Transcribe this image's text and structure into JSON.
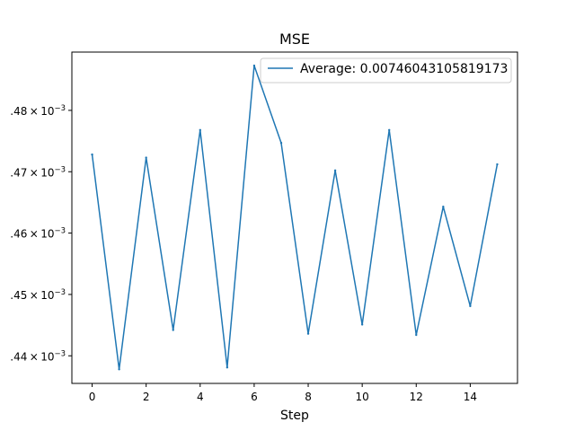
{
  "chart_data": {
    "type": "line",
    "title": "MSE",
    "xlabel": "Step",
    "ylabel": "",
    "xlim": [
      -0.75,
      15.75
    ],
    "ylim": [
      0.0074355,
      0.0074895
    ],
    "x_ticks": [
      0,
      2,
      4,
      6,
      8,
      10,
      12,
      14
    ],
    "x_tick_labels": [
      "0",
      "2",
      "4",
      "6",
      "8",
      "10",
      "12",
      "14"
    ],
    "y_ticks": [
      0.00744,
      0.00745,
      0.00746,
      0.00747,
      0.00748
    ],
    "y_tick_labels": [
      {
        "mantissa": ".44",
        "base": "10",
        "exponent": "−3"
      },
      {
        "mantissa": ".45",
        "base": "10",
        "exponent": "−3"
      },
      {
        "mantissa": ".46",
        "base": "10",
        "exponent": "−3"
      },
      {
        "mantissa": ".47",
        "base": "10",
        "exponent": "−3"
      },
      {
        "mantissa": ".48",
        "base": "10",
        "exponent": "−3"
      }
    ],
    "grid": false,
    "legend_position": "upper-right",
    "series": [
      {
        "name": "Average: 0.00746043105819173",
        "color": "#1f77b4",
        "x": [
          0,
          1,
          2,
          3,
          4,
          5,
          6,
          7,
          8,
          9,
          10,
          11,
          12,
          13,
          14,
          15
        ],
        "y": [
          0.0074728,
          0.0074378,
          0.0074723,
          0.0074442,
          0.0074768,
          0.0074381,
          0.0074873,
          0.0074747,
          0.0074436,
          0.0074702,
          0.0074451,
          0.0074768,
          0.0074434,
          0.0074643,
          0.0074481,
          0.0074712
        ]
      }
    ]
  }
}
